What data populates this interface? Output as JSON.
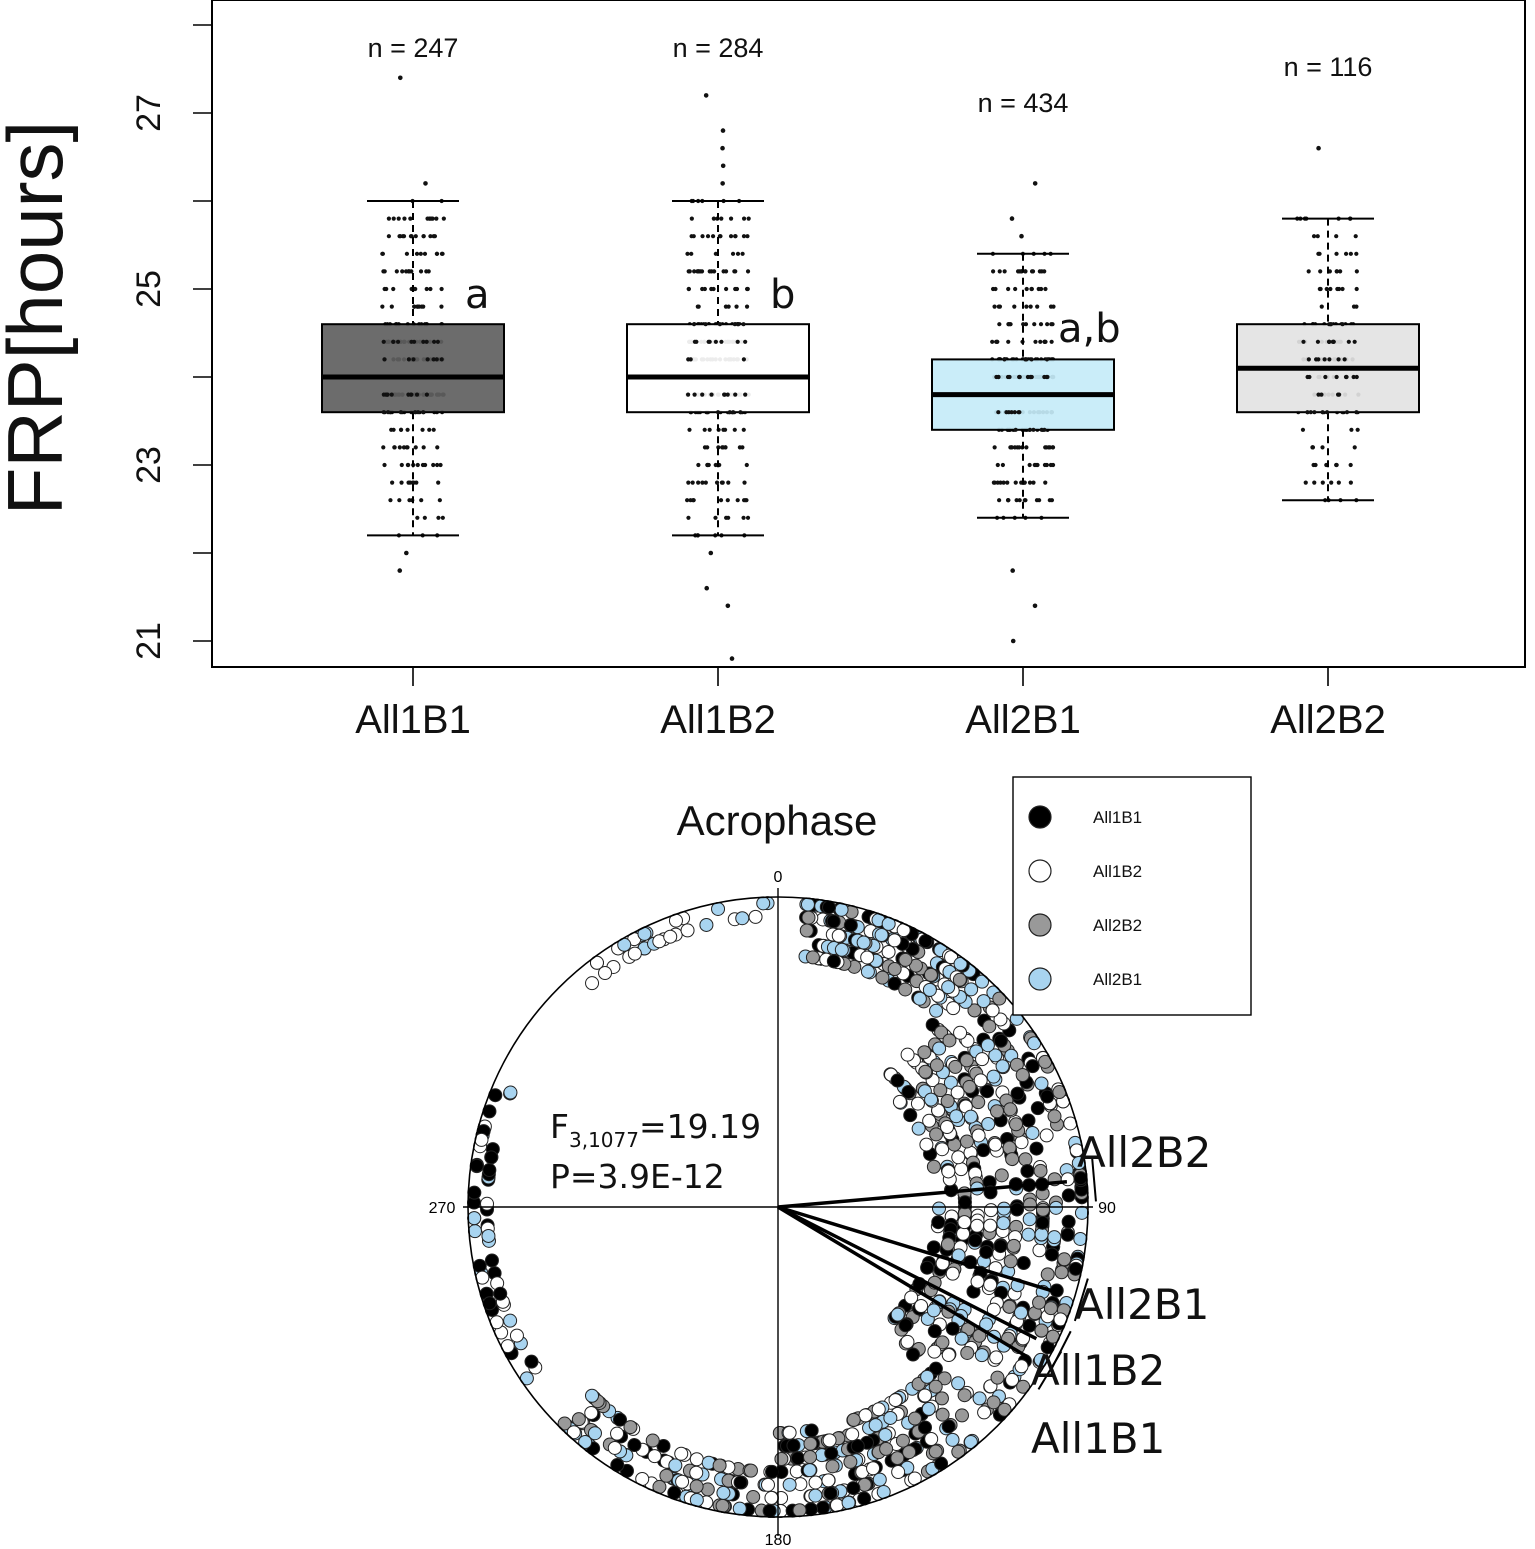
{
  "chart_data": [
    {
      "type": "box",
      "ylabel": "FRP[hours]",
      "ylim": [
        20.8,
        28.1
      ],
      "yticks": [
        21,
        23,
        25,
        27
      ],
      "categories": [
        "All1B1",
        "All1B2",
        "All2B1",
        "All2B2"
      ],
      "n_labels": [
        "n = 247",
        "n = 284",
        "n = 434",
        "n = 116"
      ],
      "sig_letters": [
        "a",
        "b",
        "a,b",
        ""
      ],
      "fill_colors": [
        "#606060",
        "#ffffff",
        "#c5ecf8",
        "#e3e3e3"
      ],
      "boxes": [
        {
          "name": "All1B1",
          "whisker_low": 22.2,
          "q1": 23.6,
          "median": 24.0,
          "q3": 24.6,
          "whisker_high": 26.0,
          "outliers": [
            26.2,
            27.4,
            22.0,
            21.8
          ]
        },
        {
          "name": "All1B2",
          "whisker_low": 22.2,
          "q1": 23.6,
          "median": 24.0,
          "q3": 24.6,
          "whisker_high": 26.0,
          "outliers": [
            26.2,
            26.6,
            26.4,
            26.8,
            27.2,
            22.0,
            21.6,
            21.4,
            20.8
          ]
        },
        {
          "name": "All2B1",
          "whisker_low": 22.4,
          "q1": 23.4,
          "median": 23.8,
          "q3": 24.2,
          "whisker_high": 25.4,
          "outliers": [
            25.6,
            25.8,
            26.2,
            21.8,
            21.4,
            21.0
          ]
        },
        {
          "name": "All2B2",
          "whisker_low": 22.6,
          "q1": 23.6,
          "median": 24.1,
          "q3": 24.6,
          "whisker_high": 25.8,
          "outliers": [
            26.6
          ]
        }
      ]
    },
    {
      "type": "polar-scatter",
      "title": "Acrophase",
      "angle_labels": [
        "0",
        "90",
        "180",
        "270"
      ],
      "stat_F": "F",
      "stat_F_sub": "3,1077",
      "stat_F_value": "=19.19",
      "stat_P": "P=3.9E-12",
      "legend": [
        {
          "label": "All1B1",
          "color": "#000000"
        },
        {
          "label": "All1B2",
          "color": "#ffffff"
        },
        {
          "label": "All2B2",
          "color": "#999999"
        },
        {
          "label": "All2B1",
          "color": "#a8d4f0"
        }
      ],
      "mean_angles_deg": [
        {
          "group": "All2B2",
          "angle": 85
        },
        {
          "group": "All2B1",
          "angle": 107
        },
        {
          "group": "All1B2",
          "angle": 117
        },
        {
          "group": "All1B1",
          "angle": 121
        }
      ],
      "group_labels": [
        "All2B2",
        "All2B1",
        "All1B2",
        "All1B1"
      ]
    }
  ]
}
